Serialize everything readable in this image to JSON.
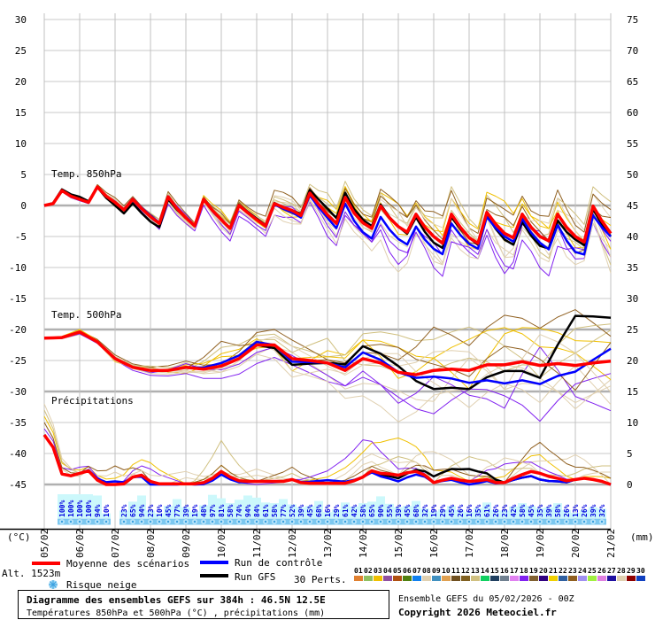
{
  "chart_data": {
    "type": "line",
    "title": "Diagramme des ensembles GEFS sur 384h : 46.5N 12.5E",
    "subtitle": "Températures 850hPa et 500hPa (°C) , précipitations (mm)",
    "run_info": "Ensemble GEFS du 05/02/2026 - 00Z",
    "copyright": "Copyright 2026 Meteociel.fr",
    "altitude": "Alt. 1523m",
    "ylabel_left": "(°C)",
    "ylabel_right": "(mm)",
    "ylim_left": [
      -45,
      30
    ],
    "ylim_right": [
      0,
      75
    ],
    "yticks_left": [
      "30",
      "25",
      "20",
      "15",
      "10",
      "5",
      "0",
      "-5",
      "-10",
      "-15",
      "-20",
      "-25",
      "-30",
      "-35",
      "-40",
      "-45"
    ],
    "yticks_right": [
      "75",
      "70",
      "65",
      "60",
      "55",
      "50",
      "45",
      "40",
      "35",
      "30",
      "25",
      "20",
      "15",
      "10",
      "5",
      "0"
    ],
    "x_dates": [
      "05/02",
      "06/02",
      "07/02",
      "08/02",
      "09/02",
      "10/02",
      "11/02",
      "12/02",
      "13/02",
      "14/02",
      "15/02",
      "16/02",
      "17/02",
      "18/02",
      "19/02",
      "20/02",
      "21/02"
    ],
    "x_step_hours": 6,
    "grid": true,
    "section_labels": {
      "t850": "Temp. 850hPa",
      "t500": "Temp. 500hPa",
      "precip": "Précipitations"
    },
    "t850": {
      "mean": [
        0,
        0.3,
        2.4,
        1.5,
        1.0,
        0.5,
        3.0,
        1.5,
        0.5,
        -0.7,
        1.0,
        -0.5,
        -1.8,
        -2.9,
        1.4,
        -0.5,
        -2,
        -3.3,
        1.0,
        -0.8,
        -2.3,
        -3.7,
        0,
        -1.2,
        -2.3,
        -3.3,
        0.3,
        -0.3,
        -0.8,
        -1.6,
        2.0,
        0.2,
        -1.5,
        -2.9,
        1.3,
        -1.2,
        -2.8,
        -3.7,
        -0.1,
        -2,
        -3.4,
        -4.3,
        -1.4,
        -3.5,
        -5,
        -6.1,
        -1.4,
        -3.5,
        -5.2,
        -6.1,
        -1.1,
        -3,
        -4.5,
        -5.2,
        -1.4,
        -3.5,
        -5,
        -5.7,
        -1.4,
        -3.5,
        -5,
        -5.9,
        -0.1,
        -2.5,
        -4.5
      ],
      "control_offset_daily": [
        0,
        0,
        0,
        0.2,
        0,
        0,
        0,
        -0.3,
        -0.5,
        -1.5,
        -2,
        -2,
        -1,
        -0.5,
        -1,
        -2.5,
        -0.5
      ],
      "gfs_offset_daily": [
        0,
        0.4,
        -0.5,
        -0.8,
        0,
        0,
        0.2,
        0,
        1,
        0.5,
        0,
        -1,
        0,
        -1,
        -1.5,
        -0.5,
        -0.5
      ],
      "members_offset_daily": [
        [
          0,
          0.3,
          -0.5,
          0.4,
          -1,
          0.5,
          1,
          -1,
          2,
          1,
          3,
          2,
          -2,
          1,
          3,
          -2,
          1
        ],
        [
          0,
          -0.2,
          0.3,
          -0.6,
          0.5,
          -1,
          -0.5,
          1,
          -1,
          -3,
          -2,
          -4,
          1,
          -3,
          -2,
          3,
          2
        ],
        [
          0,
          0.1,
          0.2,
          0.3,
          -0.5,
          1,
          0.5,
          0.5,
          1.5,
          3,
          1,
          3,
          4,
          2,
          -3,
          -1,
          -4
        ],
        [
          0,
          -0.3,
          -0.2,
          -0.8,
          -1,
          -1.5,
          -2,
          -1,
          -3,
          -2,
          -5,
          -1,
          -3,
          -5,
          1,
          -4,
          -3
        ],
        [
          0,
          0.2,
          0.6,
          0.5,
          0.8,
          0.3,
          1.5,
          2,
          0.5,
          1,
          2,
          4,
          2,
          3,
          4,
          2,
          3
        ],
        [
          0,
          0,
          -0.4,
          0.2,
          -0.3,
          -0.8,
          0.3,
          -1.5,
          -2,
          -4,
          -6,
          -3,
          -2,
          0,
          -1,
          -5,
          -2
        ],
        [
          0,
          0.4,
          0.1,
          -0.3,
          0.4,
          1.2,
          -0.5,
          0,
          1,
          2,
          -1,
          1,
          3,
          4,
          2,
          1,
          -2
        ],
        [
          0,
          -0.1,
          0.4,
          -0.2,
          -0.6,
          -0.2,
          -1,
          -2,
          -1,
          0,
          2,
          -2,
          -4,
          -2,
          -4,
          0,
          -5
        ],
        [
          0,
          0.2,
          -0.3,
          0.7,
          0.2,
          0.4,
          0.8,
          1,
          3,
          -1,
          0,
          0,
          1,
          -1,
          0,
          4,
          4
        ],
        [
          0,
          -0.3,
          0.2,
          -0.4,
          0.6,
          -0.6,
          -1.2,
          0.5,
          -1.5,
          -2.5,
          -3,
          -5,
          -2,
          -4,
          -6,
          -2,
          -1
        ],
        [
          0,
          0.1,
          -0.1,
          0.1,
          -0.2,
          0.8,
          0.2,
          -0.5,
          0.5,
          2,
          3,
          1,
          -1,
          2,
          1,
          -3,
          2
        ],
        [
          0,
          0.2,
          0.1,
          -0.5,
          -0.8,
          -0.4,
          0.6,
          1.5,
          -0.5,
          -1,
          1,
          2,
          2,
          -3,
          3,
          1,
          -3
        ]
      ]
    },
    "t500": {
      "mean_12h": [
        -21.4,
        -21.3,
        -20.4,
        -22,
        -24.7,
        -26.1,
        -26.6,
        -26.6,
        -26.1,
        -26.4,
        -25.9,
        -24.7,
        -22.5,
        -22.5,
        -24.7,
        -25,
        -25.4,
        -26.6,
        -24.7,
        -25.4,
        -26.9,
        -27.3,
        -26.6,
        -26.4,
        -26.6,
        -25.7,
        -25.7,
        -25.2,
        -25.8,
        -25.5,
        -25.8,
        -25.4,
        -25.1
      ],
      "control_offset_daily": [
        0,
        0,
        0,
        0,
        0,
        0.5,
        0.5,
        -0.5,
        0,
        1,
        0,
        -1,
        -2,
        -3,
        -3,
        -1,
        2
      ],
      "gfs_offset_daily": [
        0,
        0,
        0,
        0,
        0,
        0,
        0,
        -1,
        0,
        2,
        1,
        -3,
        -3,
        -1,
        -2,
        8,
        7
      ],
      "members_offset_daily": [
        [
          0,
          0.3,
          -0.5,
          0.5,
          -1,
          2,
          1,
          -2,
          2,
          3,
          4,
          2,
          -3,
          5,
          6,
          4,
          3
        ],
        [
          0,
          -0.4,
          0.4,
          -0.3,
          0.8,
          -1,
          -1.5,
          1,
          -2,
          -4,
          -3,
          -5,
          2,
          -4,
          -3,
          -6,
          -4
        ],
        [
          0,
          0.2,
          0.3,
          0.4,
          -0.5,
          3,
          1.5,
          2,
          1,
          4,
          6,
          5,
          7,
          3,
          -2,
          2,
          5
        ],
        [
          0,
          -0.3,
          -0.2,
          -0.8,
          -1,
          -2,
          -3,
          -1,
          -3,
          -2,
          -5,
          -1,
          -4,
          -7,
          3,
          -5,
          -8
        ],
        [
          0,
          0.2,
          0.6,
          0.5,
          1,
          0.3,
          2,
          3,
          0.5,
          1,
          2,
          7,
          4,
          8,
          6,
          9,
          4
        ],
        [
          0,
          0,
          -0.4,
          0.2,
          -0.5,
          -1,
          0.3,
          -2,
          -3,
          -6,
          -8,
          -4,
          -3,
          0,
          -2,
          -7,
          -3
        ],
        [
          0,
          0.4,
          0.1,
          -0.3,
          0.4,
          1.5,
          -0.5,
          0,
          1,
          3,
          -1,
          2,
          5,
          6,
          3,
          2,
          -3
        ],
        [
          0,
          -0.1,
          0.4,
          -0.2,
          -0.6,
          -0.2,
          -1.5,
          -3,
          -1,
          0,
          3,
          -2,
          -6,
          -3,
          -6,
          0,
          -7
        ],
        [
          0,
          0.2,
          -0.3,
          0.7,
          0.2,
          0.4,
          0.8,
          1,
          4,
          -1,
          0,
          0,
          2,
          -1,
          0,
          6,
          6
        ],
        [
          0,
          -0.3,
          0.2,
          -0.4,
          0.6,
          -0.6,
          -1.2,
          0.5,
          -2,
          -3,
          -4,
          -7,
          -3,
          -5,
          -9,
          -3,
          -2
        ],
        [
          0,
          0.1,
          -0.1,
          0.1,
          -0.2,
          4,
          0.2,
          -0.5,
          0.5,
          2,
          4,
          1,
          -1,
          3,
          1,
          -4,
          3
        ],
        [
          0,
          0.2,
          0.1,
          -0.5,
          -0.8,
          -0.4,
          0.6,
          2,
          -0.5,
          -1,
          1,
          3,
          3,
          -4,
          5,
          2,
          -5
        ]
      ]
    },
    "precip": {
      "mean": [
        8,
        6,
        1.7,
        1.4,
        1.8,
        2.2,
        0.7,
        0,
        0,
        0.1,
        1.2,
        1.5,
        0.5,
        0.1,
        0.1,
        0.1,
        0.1,
        0.1,
        0.3,
        1,
        2.1,
        1.2,
        0.6,
        0.5,
        0.5,
        0.5,
        0.5,
        0.5,
        0.8,
        0.3,
        0.2,
        0.2,
        0.2,
        0.2,
        0.2,
        0.6,
        1.2,
        2.2,
        1.8,
        1.7,
        1.5,
        1.9,
        2.1,
        1.5,
        0.3,
        0.7,
        1,
        0.7,
        0.5,
        0.6,
        0.8,
        0.3,
        0.3,
        1,
        1.6,
        2.1,
        1.8,
        1.3,
        1,
        0.6,
        0.8,
        1,
        0.8,
        0.5,
        0
      ],
      "control_offset_daily": [
        0,
        0,
        0.5,
        -0.5,
        0,
        -0.5,
        0,
        0,
        0.5,
        0,
        -1,
        0,
        -0.5,
        0,
        -1,
        0,
        0
      ],
      "gfs_offset_daily": [
        0,
        0,
        0,
        0,
        0,
        0,
        0,
        0,
        0,
        0,
        -0.5,
        1,
        2,
        0,
        -1,
        0,
        0
      ],
      "members_offset_daily": [
        [
          3,
          0.5,
          1,
          3,
          0,
          1,
          0,
          0,
          1,
          4,
          6,
          2,
          0,
          1,
          3,
          0,
          1
        ],
        [
          2,
          -0.5,
          2,
          -1,
          1,
          0,
          2,
          0,
          -1,
          2,
          0,
          5,
          1,
          0,
          2,
          4,
          0
        ],
        [
          4,
          0,
          0,
          0,
          -1,
          5,
          0,
          1,
          0,
          0,
          3,
          0,
          4,
          2,
          0,
          1,
          3
        ],
        [
          1,
          1,
          0,
          2,
          0,
          0,
          -0.5,
          0,
          2,
          6,
          1,
          0,
          0,
          3,
          1,
          0,
          0
        ],
        [
          2,
          0,
          3,
          0,
          0,
          1,
          0,
          2,
          0,
          1,
          0,
          2,
          1,
          0,
          5,
          2,
          1
        ],
        [
          5,
          0,
          0,
          1,
          2,
          0,
          1,
          0,
          0,
          3,
          2,
          1,
          0,
          4,
          0,
          0,
          2
        ]
      ]
    },
    "snow_risk": {
      "label": "Risque neige",
      "values": [
        "100%",
        "100%",
        "100%",
        "100%",
        "94%",
        "10%",
        null,
        "23%",
        "65%",
        "94%",
        "23%",
        "10%",
        "45%",
        "77%",
        "39%",
        "19%",
        "48%",
        "97%",
        "81%",
        "58%",
        "74%",
        "94%",
        "84%",
        "61%",
        "58%",
        "77%",
        "52%",
        "39%",
        "45%",
        "68%",
        "16%",
        "29%",
        "61%",
        "42%",
        "58%",
        "65%",
        "90%",
        "55%",
        "39%",
        "45%",
        "68%",
        "32%",
        "19%",
        "29%",
        "45%",
        "26%",
        "16%",
        "35%",
        "61%",
        "26%",
        "23%",
        "42%",
        "58%",
        "45%",
        "35%",
        "39%",
        "58%",
        "26%",
        "13%",
        "26%",
        "39%",
        "32%"
      ]
    },
    "legend": {
      "mean": "Moyenne des scénarios",
      "control": "Run de contrôle",
      "gfs": "Run GFS",
      "perts_label": "30 Perts.",
      "perts": [
        "01",
        "02",
        "03",
        "04",
        "05",
        "06",
        "07",
        "08",
        "09",
        "10",
        "11",
        "12",
        "13",
        "14",
        "15",
        "16",
        "17",
        "18",
        "19",
        "20",
        "21",
        "22",
        "23",
        "24",
        "25",
        "26",
        "27",
        "28",
        "29",
        "30"
      ]
    },
    "colors": {
      "mean": "#ff0000",
      "control": "#0000ff",
      "gfs": "#000000",
      "perts": [
        "#e08030",
        "#90c060",
        "#f0c000",
        "#9050a0",
        "#b05010",
        "#508010",
        "#1080f0",
        "#e0d0b0",
        "#4090c0",
        "#e0a050",
        "#705020",
        "#806020",
        "#d0c080",
        "#10d060",
        "#204060",
        "#708090",
        "#e080f0",
        "#8020f0",
        "#806030",
        "#300080",
        "#f0d000",
        "#3060a0",
        "#906020",
        "#a090f0",
        "#a0f040",
        "#e080e0",
        "#2010a0",
        "#e0d0b0",
        "#900000",
        "#1040c0"
      ]
    }
  }
}
